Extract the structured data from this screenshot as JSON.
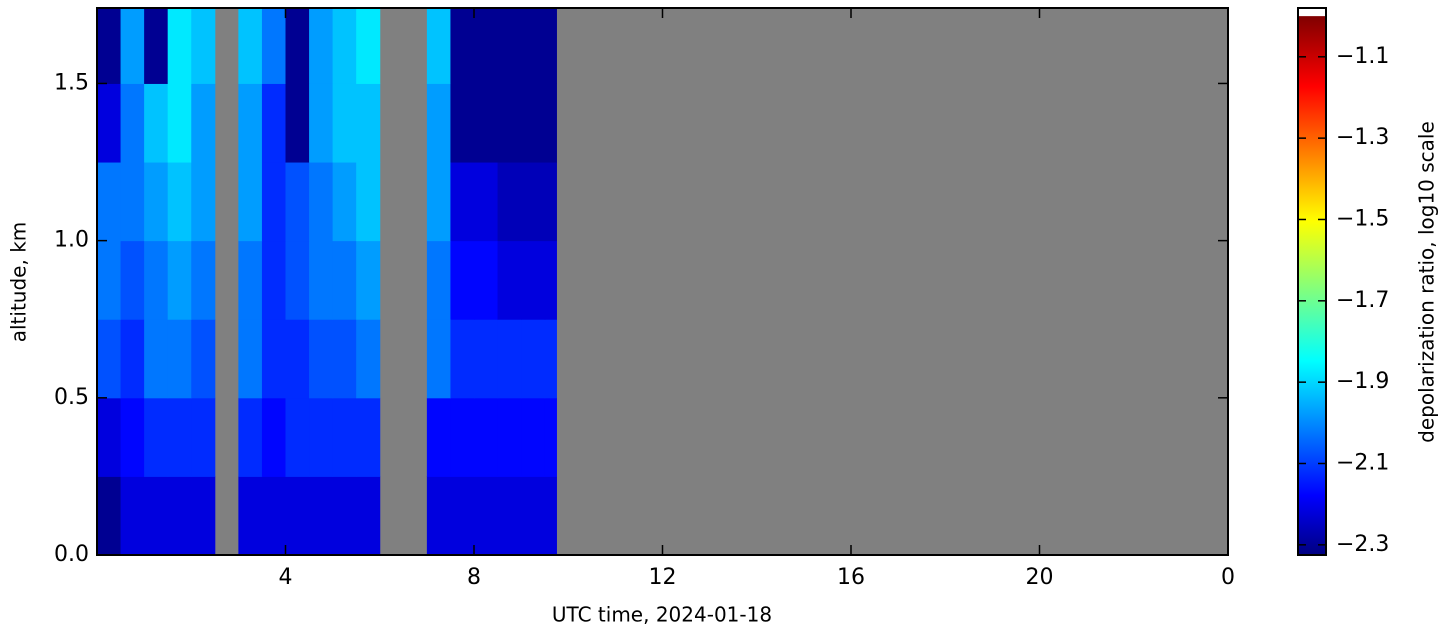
{
  "chart_data": {
    "type": "heatmap",
    "xlabel": "UTC time,  2024-01-18",
    "ylabel": "altitude, km",
    "colorbar_label": "depolarization ratio, log10 scale",
    "colormap": "jet",
    "nodata_color": "#808080",
    "xlim": [
      0,
      24
    ],
    "xticks": [
      4,
      8,
      12,
      16,
      20,
      {
        "value": 24,
        "label": "0"
      }
    ],
    "ylim": [
      0,
      1.74
    ],
    "yticks": [
      {
        "value": 0,
        "label": "0.0"
      },
      {
        "value": 0.5,
        "label": "0.5"
      },
      {
        "value": 1,
        "label": "1.0"
      },
      {
        "value": 1.5,
        "label": "1.5"
      }
    ],
    "clim": [
      -2.325,
      -0.98
    ],
    "cticks": [
      {
        "value": -2.3,
        "label": "−2.3"
      },
      {
        "value": -2.1,
        "label": "−2.1"
      },
      {
        "value": -1.9,
        "label": "−1.9"
      },
      {
        "value": -1.7,
        "label": "−1.7"
      },
      {
        "value": -1.5,
        "label": "−1.5"
      },
      {
        "value": -1.3,
        "label": "−1.3"
      },
      {
        "value": -1.1,
        "label": "−1.1"
      }
    ],
    "x_edges": [
      0,
      0.5,
      1,
      1.5,
      2,
      2.5,
      3,
      3.5,
      4,
      4.5,
      5,
      5.5,
      6,
      6.5,
      7,
      7.5,
      8,
      8.5,
      9,
      9.5,
      9.75
    ],
    "y_edges": [
      0,
      0.25,
      0.5,
      0.75,
      1,
      1.25,
      1.5,
      1.74
    ],
    "z": [
      [
        -2.3,
        -2.2,
        -2.2,
        -2.2,
        -2.2,
        null,
        -2.2,
        -2.2,
        -2.2,
        -2.2,
        -2.2,
        -2.2,
        null,
        null,
        -2.2,
        -2.2,
        -2.2,
        -2.2,
        -2.2,
        -2.2
      ],
      [
        -2.2,
        -2.15,
        -2.1,
        -2.1,
        -2.1,
        null,
        -2.1,
        -2.15,
        -2.1,
        -2.1,
        -2.1,
        -2.1,
        null,
        null,
        -2.15,
        -2.15,
        -2.15,
        -2.15,
        -2.15,
        -2.15
      ],
      [
        -2.05,
        -2.1,
        -2.0,
        -2.0,
        -2.05,
        null,
        -2.0,
        -2.1,
        -2.1,
        -2.05,
        -2.05,
        -2.0,
        null,
        null,
        -2.0,
        -2.1,
        -2.1,
        -2.1,
        -2.1,
        -2.1
      ],
      [
        -2.0,
        -2.05,
        -2.0,
        -1.95,
        -2.0,
        null,
        -2.0,
        -2.1,
        -2.05,
        -2.0,
        -2.0,
        -1.95,
        null,
        null,
        -2.0,
        -2.15,
        -2.15,
        -2.2,
        -2.2,
        -2.2
      ],
      [
        -2.0,
        -2.0,
        -1.95,
        -1.9,
        -1.95,
        null,
        -1.95,
        -2.1,
        -2.05,
        -2.0,
        -1.95,
        -1.9,
        null,
        null,
        -1.95,
        -2.2,
        -2.2,
        -2.25,
        -2.25,
        -2.25
      ],
      [
        -2.2,
        -2.0,
        -1.9,
        -1.85,
        -1.95,
        null,
        -1.95,
        -2.1,
        -2.3,
        -1.95,
        -1.9,
        -1.9,
        null,
        null,
        -1.95,
        -2.3,
        -2.3,
        -2.3,
        -2.3,
        -2.3
      ],
      [
        -2.3,
        -1.95,
        -2.3,
        -1.85,
        -1.9,
        null,
        -1.9,
        -2.0,
        -2.3,
        -1.95,
        -1.9,
        -1.85,
        null,
        null,
        -1.9,
        -2.3,
        -2.3,
        -2.3,
        -2.3,
        -2.3
      ]
    ]
  }
}
